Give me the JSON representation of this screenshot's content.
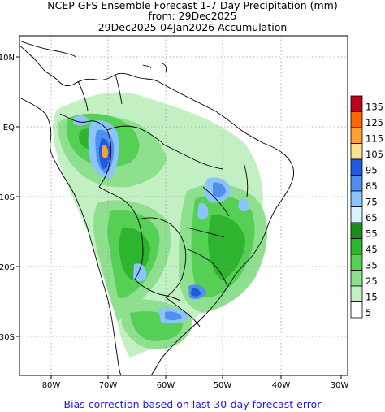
{
  "title": {
    "line1": "NCEP GFS Ensemble Forecast 1-7 Day Precipitation (mm)",
    "line2": "from: 29Dec2025",
    "line3": "29Dec2025-04Jan2026 Accumulation"
  },
  "axes": {
    "lon_labels": [
      "80W",
      "70W",
      "60W",
      "50W",
      "40W",
      "30W"
    ],
    "lat_labels": [
      "10N",
      "EQ",
      "10S",
      "20S",
      "30S"
    ]
  },
  "colorbar": {
    "levels": [
      "135",
      "125",
      "115",
      "105",
      "95",
      "85",
      "75",
      "65",
      "55",
      "45",
      "35",
      "25",
      "15",
      "5"
    ],
    "colors": [
      "#c0001a",
      "#ff6600",
      "#ffa030",
      "#ffe090",
      "#1e5ae0",
      "#4f8ff0",
      "#8cc4ff",
      "#d5f4ff",
      "#1e8c1e",
      "#2fb42f",
      "#55d055",
      "#8ee08e",
      "#c3f0c3",
      "#ffffff"
    ]
  },
  "footer": "Bias correction based on last 30-day forecast error"
}
